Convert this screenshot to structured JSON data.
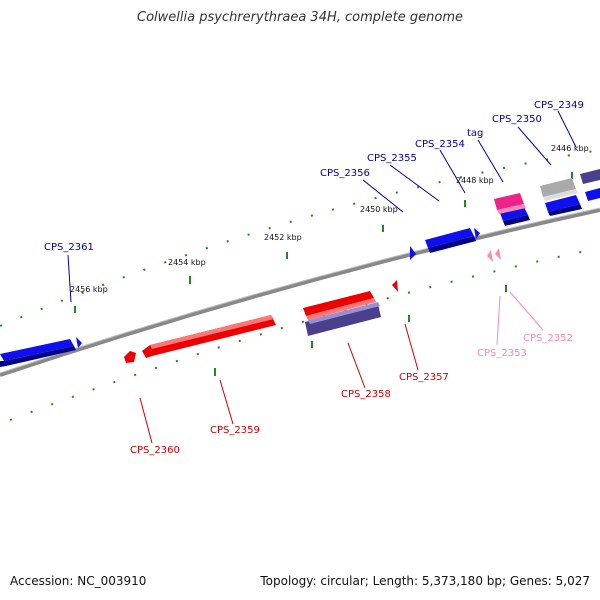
{
  "title": "Colwellia psychrerythraea 34H, complete genome",
  "footer": {
    "accession": "Accession: NC_003910",
    "summary": "Topology: circular; Length: 5,373,180 bp; Genes: 5,027"
  },
  "colors": {
    "backbone": "#888888",
    "forward_gene": "#0000ee",
    "reverse_gene": "#ee0000",
    "rna_gene": "#ff66aa",
    "gray_gene": "#aaaaaa",
    "purple_gene": "#4a3f8a",
    "tick": "#228822"
  },
  "scale_labels": [
    "2456 kbp",
    "2454 kbp",
    "2452 kbp",
    "2450 kbp",
    "2448 kbp",
    "2446 kbp"
  ],
  "genes_forward": [
    "CPS_2361",
    "CPS_2356",
    "CPS_2355",
    "CPS_2354",
    "tag",
    "CPS_2350",
    "CPS_2349"
  ],
  "genes_reverse": [
    "CPS_2360",
    "CPS_2359",
    "CPS_2358",
    "CPS_2357",
    "CPS_2353",
    "CPS_2352"
  ]
}
